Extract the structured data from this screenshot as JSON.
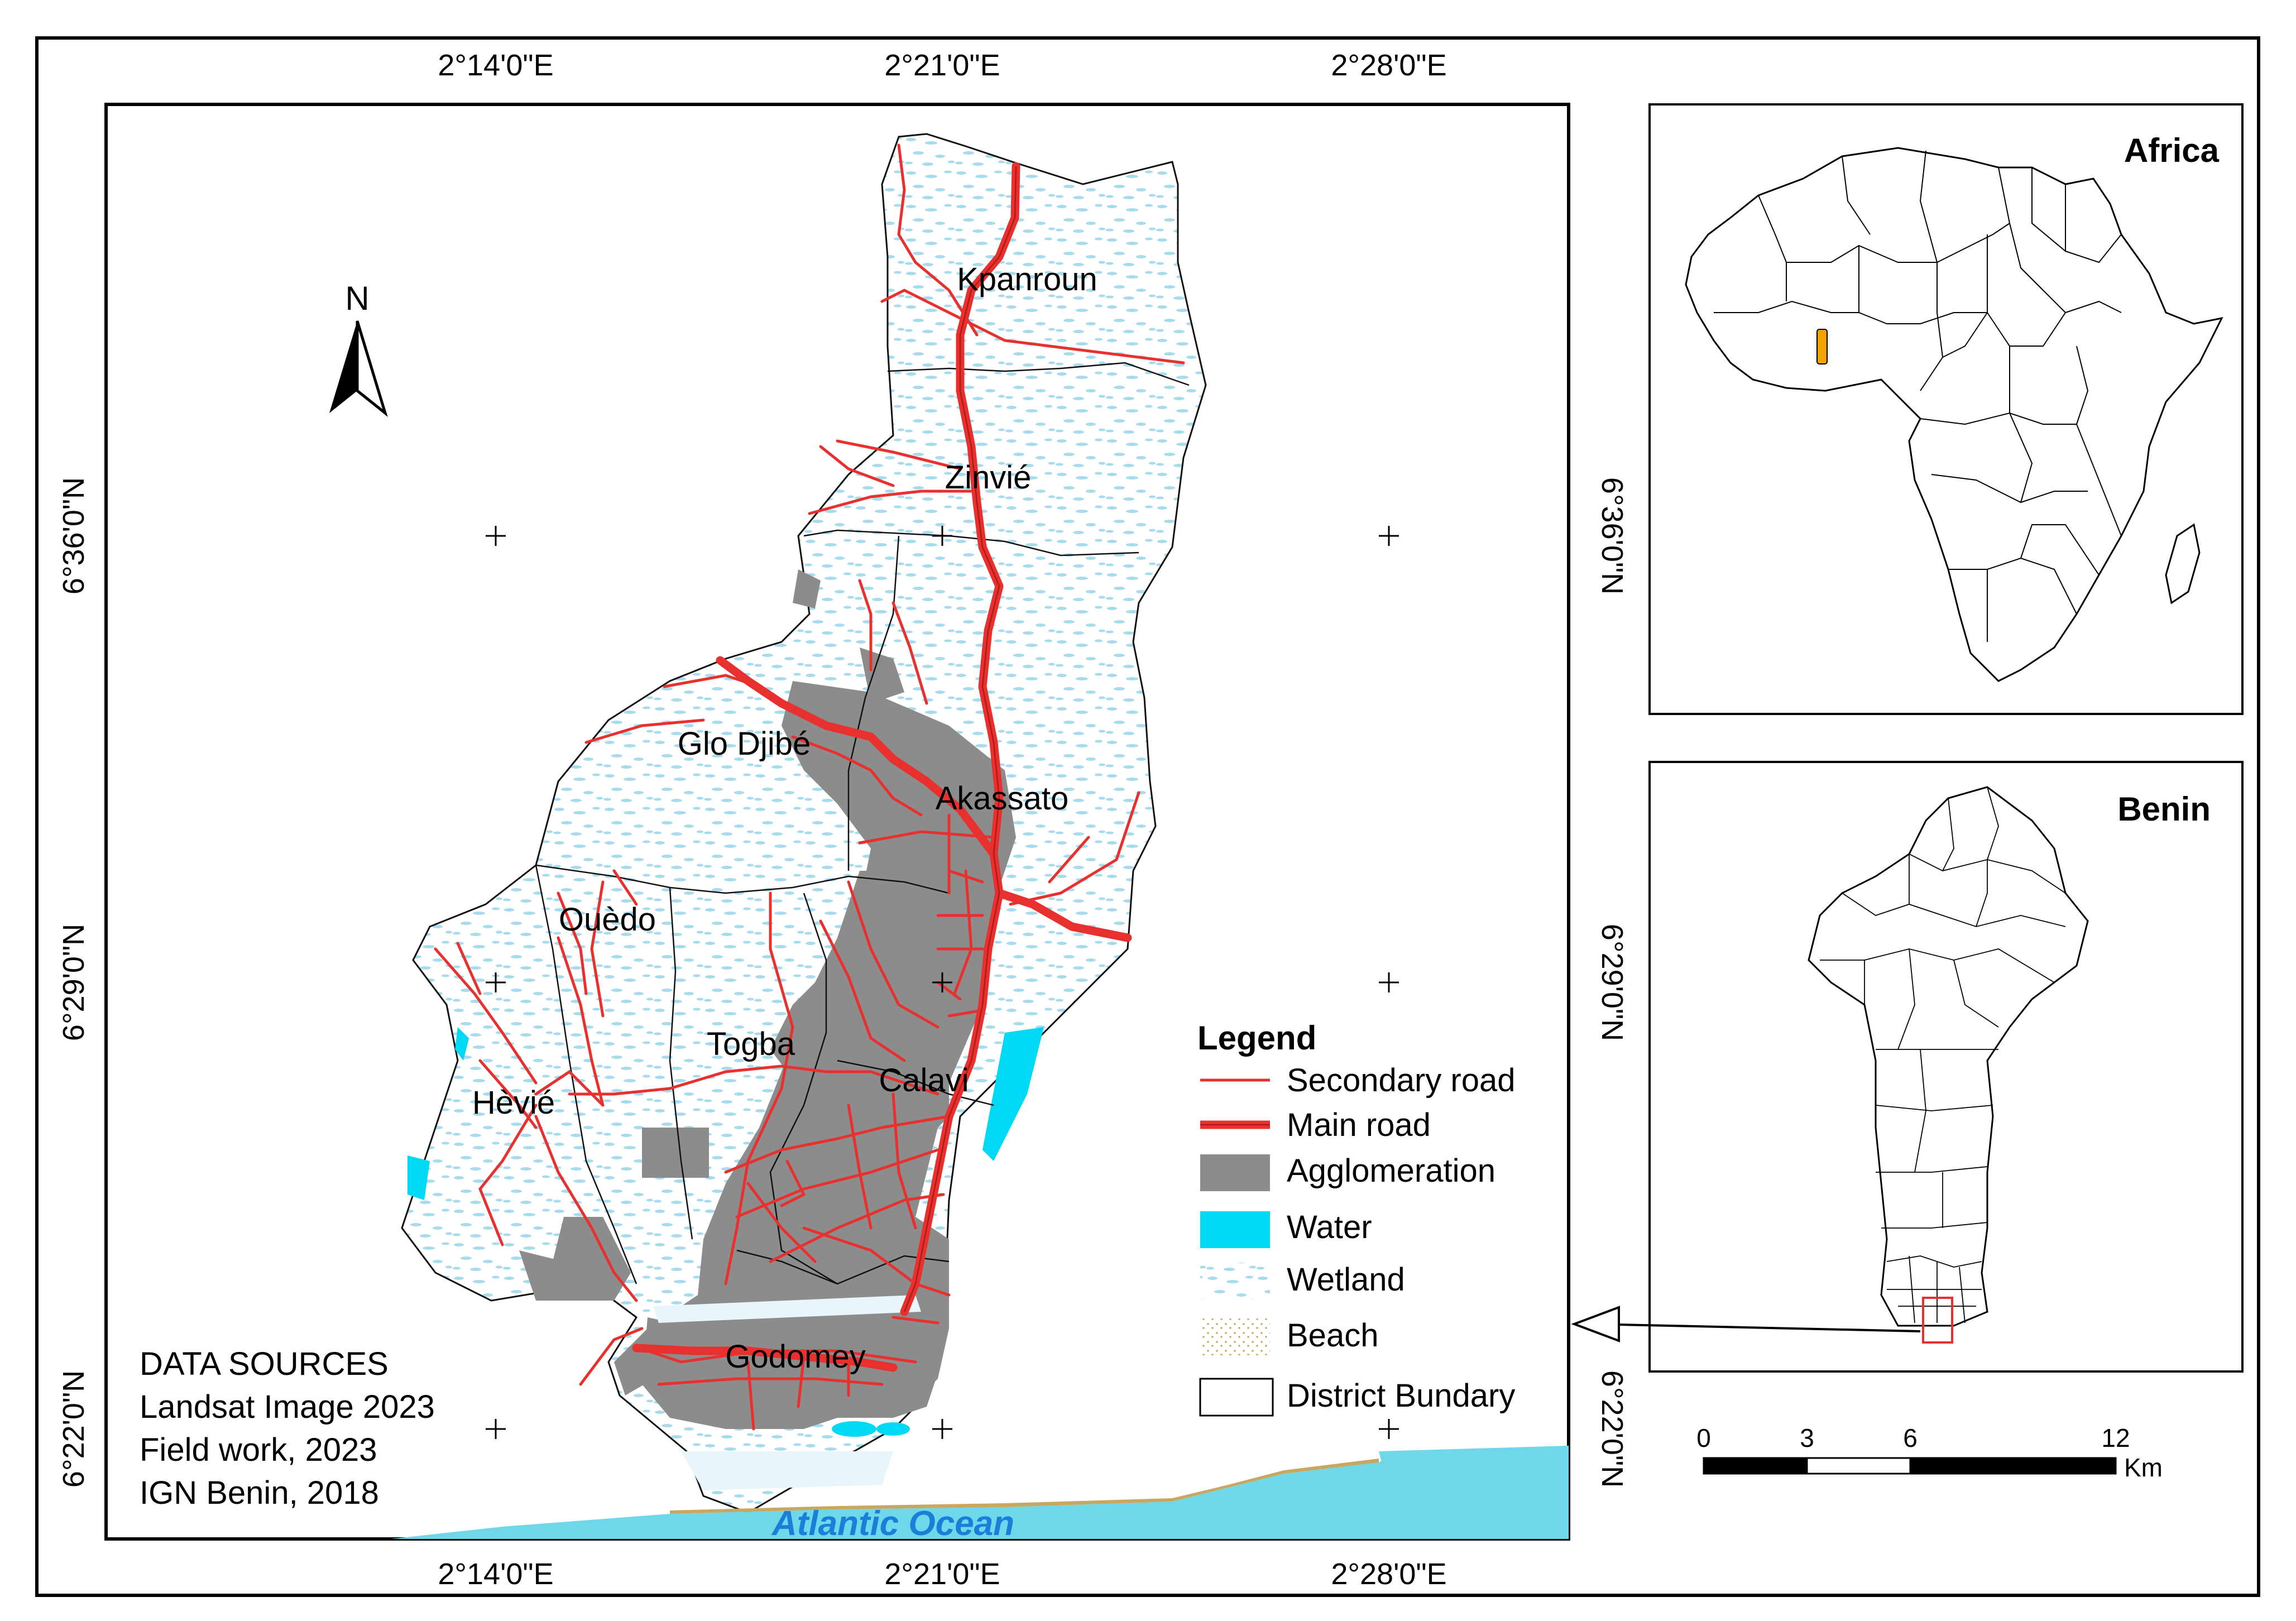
{
  "main_map": {
    "top_ticks": [
      "2°14'0\"E",
      "2°21'0\"E",
      "2°28'0\"E"
    ],
    "bottom_ticks": [
      "2°14'0\"E",
      "2°21'0\"E",
      "2°28'0\"E"
    ],
    "left_ticks": [
      "6°36'0\"N",
      "6°29'0\"N",
      "6°22'0\"N"
    ],
    "right_ticks": [
      "6°36'0\"N",
      "6°29'0\"N",
      "6°22'0\"N"
    ],
    "north_label": "N",
    "districts": [
      "Kpanroun",
      "Zinvié",
      "Glo Djibé",
      "Akassato",
      "Ouèdo",
      "Togba",
      "Calavi",
      "Hèvié",
      "Godomey"
    ],
    "ocean_label": "Atlantic Ocean"
  },
  "legend": {
    "title": "Legend",
    "items": [
      {
        "label": "Secondary road",
        "color": "#e8312e"
      },
      {
        "label": "Main road",
        "color": "#e8312e"
      },
      {
        "label": "Agglomeration",
        "color": "#8c8c8c"
      },
      {
        "label": "Water",
        "color": "#00d9f5"
      },
      {
        "label": "Wetland",
        "color": "#a6dcee"
      },
      {
        "label": "Beach",
        "color": "#c8b47a"
      },
      {
        "label": "District Bundary",
        "color": "#ffffff"
      }
    ]
  },
  "data_sources": {
    "title": "DATA SOURCES",
    "lines": [
      "Landsat Image 2023",
      "Field work, 2023",
      "IGN Benin, 2018"
    ]
  },
  "inset_africa": {
    "title": "Africa",
    "highlight_color": "#f5a300"
  },
  "inset_benin": {
    "title": "Benin"
  },
  "scale_bar": {
    "ticks": [
      "0",
      "3",
      "6",
      "12"
    ],
    "unit": "Km"
  }
}
